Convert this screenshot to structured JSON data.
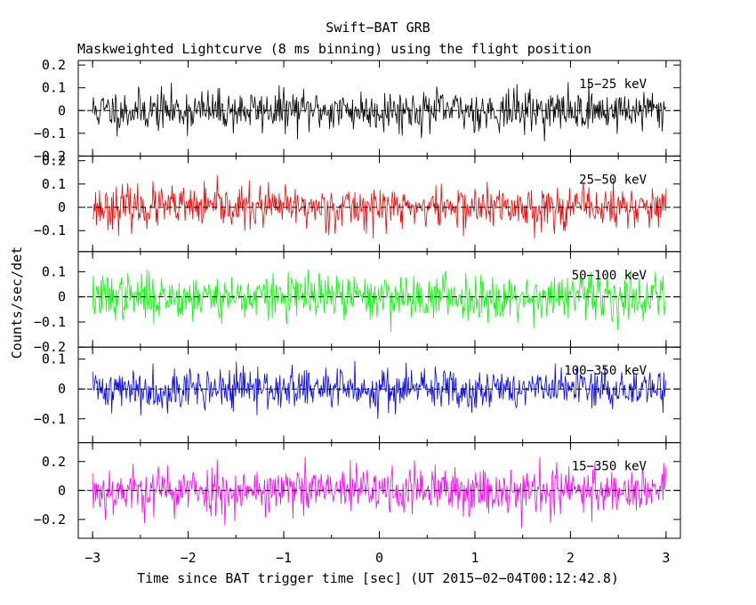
{
  "chart_data": {
    "type": "line",
    "title": "Swift−BAT GRB",
    "subtitle": "Maskweighted Lightcurve (8 ms binning) using the flight position",
    "xlabel": "Time since BAT trigger time [sec] (UT 2015−02−04T00:12:42.8)",
    "ylabel": "Counts/sec/det",
    "xlim": [
      -3.15,
      3.15
    ],
    "bin_width_sec": 0.008,
    "x_ticks": [
      -3,
      -2,
      -1,
      0,
      1,
      2,
      3
    ],
    "x_tick_labels": [
      "−3",
      "−2",
      "−1",
      "0",
      "1",
      "2",
      "3"
    ],
    "grid": false,
    "zero_line": "dashed",
    "panels": [
      {
        "band": "15−25 keV",
        "color": "#000000",
        "ylim": [
          -0.2,
          0.22
        ],
        "y_ticks": [
          -0.2,
          -0.1,
          0,
          0.1,
          0.2
        ],
        "y_tick_labels": [
          "−0.2",
          "−0.1",
          "0",
          "0.1",
          "0.2"
        ],
        "noise_sigma": 0.045,
        "seed": 11
      },
      {
        "band": "25−50 keV",
        "color": "#ff0000",
        "ylim": [
          -0.19,
          0.22
        ],
        "y_ticks": [
          -0.1,
          0,
          0.1,
          0.2
        ],
        "y_tick_labels": [
          "−0.1",
          "0",
          "0.1",
          "0.2"
        ],
        "noise_sigma": 0.045,
        "seed": 23
      },
      {
        "band": "50−100 keV",
        "color": "#00ff00",
        "ylim": [
          -0.2,
          0.18
        ],
        "y_ticks": [
          -0.2,
          -0.1,
          0,
          0.1
        ],
        "y_tick_labels": [
          "−0.2",
          "−0.1",
          "0",
          "0.1"
        ],
        "noise_sigma": 0.045,
        "seed": 37
      },
      {
        "band": "100−350 keV",
        "color": "#0000ff",
        "ylim": [
          -0.18,
          0.14
        ],
        "y_ticks": [
          -0.1,
          0,
          0.1
        ],
        "y_tick_labels": [
          "−0.1",
          "0",
          "0.1"
        ],
        "noise_sigma": 0.035,
        "seed": 41
      },
      {
        "band": "15−350 keV",
        "color": "#ff00ff",
        "ylim": [
          -0.33,
          0.33
        ],
        "y_ticks": [
          -0.2,
          0,
          0.2
        ],
        "y_tick_labels": [
          "−0.2",
          "0",
          "0.2"
        ],
        "noise_sigma": 0.085,
        "seed": 53
      }
    ]
  }
}
